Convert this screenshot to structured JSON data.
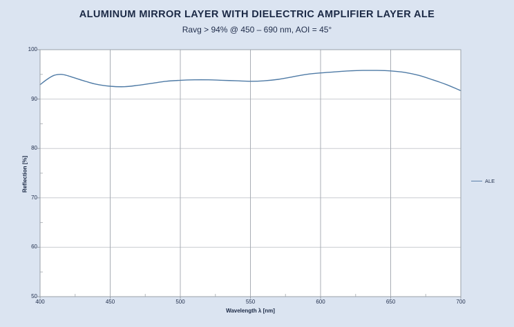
{
  "header": {
    "title": "ALUMINUM MIRROR LAYER WITH DIELECTRIC AMPLIFIER LAYER ALE",
    "subtitle": "Ravg > 94% @ 450 – 690 nm, AOI = 45°"
  },
  "colors": {
    "page_background": "#dbe4f1",
    "plot_background": "#ffffff",
    "plot_border": "#9aa0a8",
    "grid_horizontal": "#c9ccd1",
    "grid_vertical": "#a8adb4",
    "minor_tick": "#b4b8bd",
    "text": "#1f2c4a",
    "series_line": "#4e7aa5"
  },
  "chart_data": {
    "type": "line",
    "title": "ALUMINUM MIRROR LAYER WITH DIELECTRIC AMPLIFIER LAYER ALE",
    "subtitle": "Ravg > 94% @ 450 – 690 nm, AOI = 45°",
    "xlabel": "Wavelength λ [nm]",
    "ylabel": "Reflection [%]",
    "xlim": [
      400,
      700
    ],
    "ylim": [
      50,
      100
    ],
    "xticks": [
      400,
      450,
      500,
      550,
      600,
      650,
      700
    ],
    "yticks": [
      50,
      60,
      70,
      80,
      90,
      100
    ],
    "x_minor_ticks": [
      425,
      475,
      525,
      575,
      625,
      675
    ],
    "y_minor_ticks": [
      55,
      65,
      75,
      85,
      95
    ],
    "grid": "major",
    "legend_position": "right",
    "series": [
      {
        "name": "ALE",
        "color": "#4e7aa5",
        "x": [
          400,
          405,
          410,
          415,
          420,
          430,
          440,
          450,
          460,
          470,
          480,
          490,
          500,
          510,
          520,
          530,
          540,
          550,
          560,
          570,
          580,
          590,
          600,
          610,
          620,
          630,
          640,
          650,
          660,
          670,
          680,
          690,
          700
        ],
        "y": [
          92.9,
          94.0,
          94.8,
          95.0,
          94.7,
          93.8,
          93.0,
          92.6,
          92.5,
          92.8,
          93.2,
          93.6,
          93.8,
          93.9,
          93.9,
          93.8,
          93.7,
          93.6,
          93.7,
          94.0,
          94.5,
          95.0,
          95.3,
          95.5,
          95.7,
          95.8,
          95.8,
          95.7,
          95.4,
          94.8,
          93.9,
          92.9,
          91.7
        ]
      }
    ]
  }
}
